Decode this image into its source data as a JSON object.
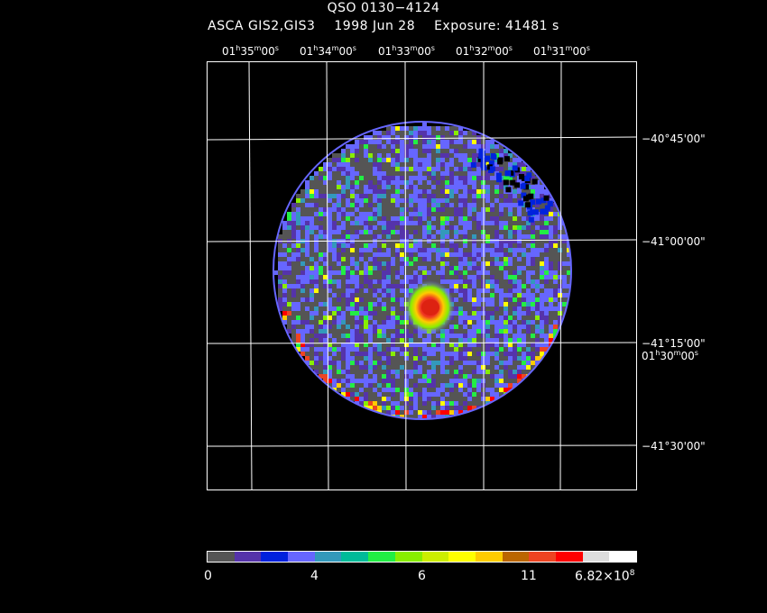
{
  "title": "QSO 0130−4124",
  "subtitle": {
    "instrument": "ASCA GIS2,GIS3",
    "date": "1998 Jun 28",
    "exposure": "Exposure: 41481 s"
  },
  "ra_labels": [
    {
      "h": "01",
      "m": "35",
      "s": "00"
    },
    {
      "h": "01",
      "m": "34",
      "s": "00"
    },
    {
      "h": "01",
      "m": "33",
      "s": "00"
    },
    {
      "h": "01",
      "m": "32",
      "s": "00"
    },
    {
      "h": "01",
      "m": "31",
      "s": "00"
    },
    {
      "h": "01",
      "m": "30",
      "s": "00"
    }
  ],
  "dec_labels": [
    "−40°45'00\"",
    "−41°00'00\"",
    "−41°15'00\"",
    "−41°30'00\""
  ],
  "colorbar": {
    "colors": [
      "#555555",
      "#5533aa",
      "#0022dd",
      "#6666ff",
      "#3399bb",
      "#00bb99",
      "#22ee44",
      "#88ee00",
      "#ccee00",
      "#ffff00",
      "#ffcc00",
      "#bb6600",
      "#ee4422",
      "#ff0000",
      "#dddddd",
      "#ffffff"
    ],
    "labels": [
      "0",
      "4",
      "6",
      "11"
    ],
    "max_mantissa": "6.82×10",
    "max_exp": "8"
  }
}
